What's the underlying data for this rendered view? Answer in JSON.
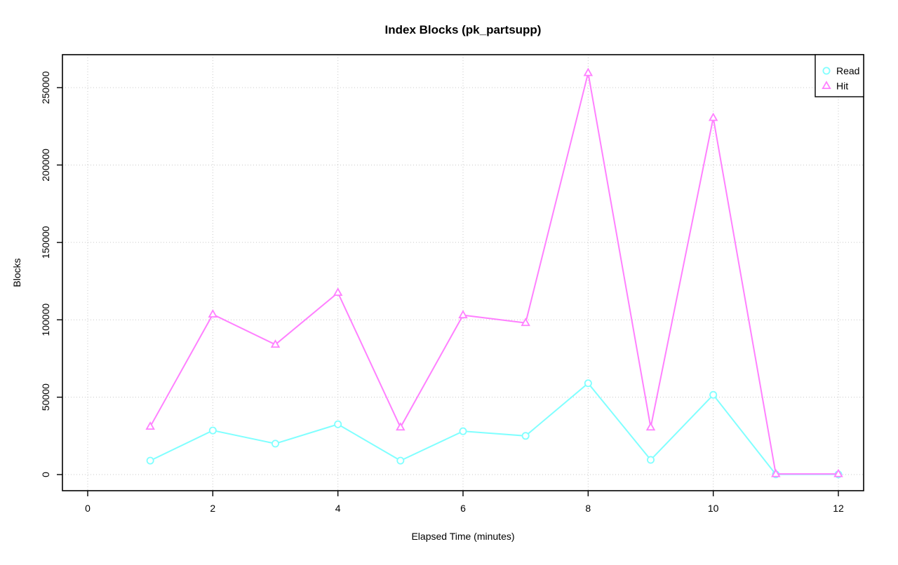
{
  "chart_data": {
    "type": "line",
    "title": "Index Blocks (pk_partsupp)",
    "xlabel": "Elapsed Time (minutes)",
    "ylabel": "Blocks",
    "x": [
      1,
      2,
      3,
      4,
      5,
      6,
      7,
      8,
      9,
      10,
      11,
      12
    ],
    "series": [
      {
        "name": "Read",
        "color": "#80FFFF",
        "marker": "circle",
        "values": [
          9000,
          28500,
          20000,
          32500,
          9000,
          28000,
          25000,
          59000,
          9500,
          51500,
          100,
          100
        ]
      },
      {
        "name": "Hit",
        "color": "#FF80FF",
        "marker": "triangle-up",
        "values": [
          31000,
          103500,
          84000,
          117500,
          30500,
          103000,
          98000,
          259500,
          30500,
          230500,
          400,
          400
        ]
      }
    ],
    "x_ticks": [
      0,
      2,
      4,
      6,
      8,
      10,
      12
    ],
    "y_ticks": [
      0,
      50000,
      100000,
      150000,
      200000,
      250000
    ],
    "xlim": [
      -0.5,
      12.5
    ],
    "ylim": [
      -10000,
      270000
    ],
    "grid": true,
    "grid_style": "dotted",
    "grid_color": "#C8C8C8",
    "axis_color": "#000000",
    "background": "#FFFFFF",
    "legend": {
      "position": "top-right"
    }
  }
}
